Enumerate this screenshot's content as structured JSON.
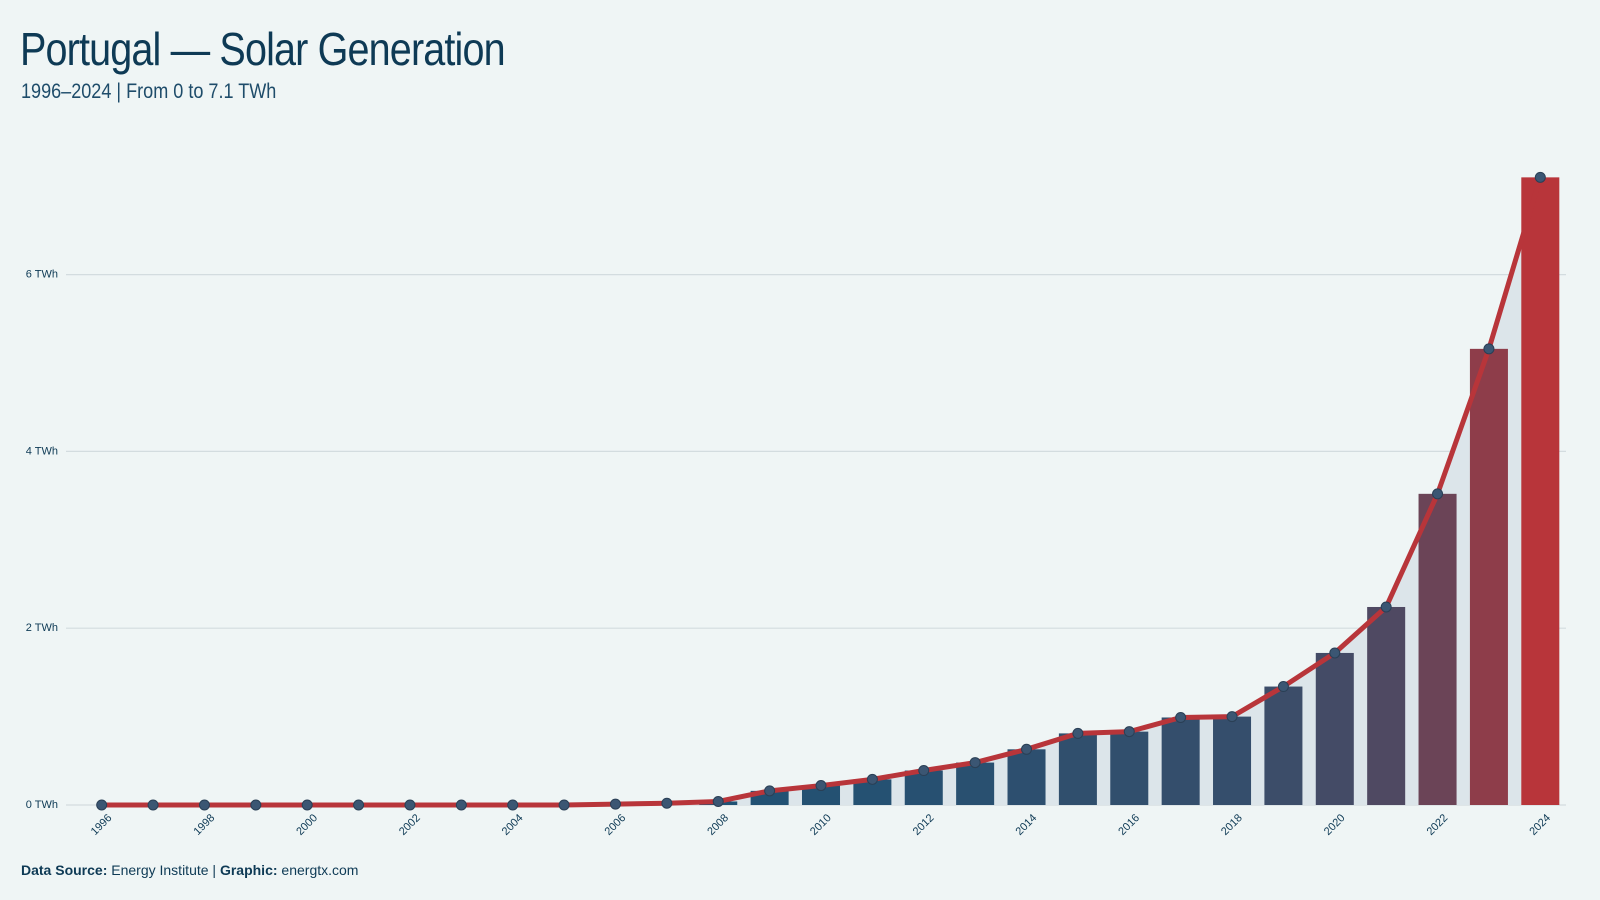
{
  "chart_data": {
    "type": "bar_line",
    "title": "Portugal — Solar Generation",
    "subtitle": "1996–2024 | From 0 to 7.1 TWh",
    "categories": [
      "1996",
      null,
      "1998",
      null,
      "2000",
      null,
      "2002",
      null,
      "2004",
      null,
      "2006",
      null,
      "2008",
      null,
      "2010",
      null,
      "2012",
      null,
      "2014",
      null,
      "2016",
      null,
      "2018",
      null,
      "2020",
      null,
      "2022",
      null,
      "2024"
    ],
    "values": [
      0,
      0,
      0,
      0,
      0,
      0,
      0,
      0,
      0,
      0,
      0.01,
      0.02,
      0.04,
      0.16,
      0.22,
      0.29,
      0.39,
      0.48,
      0.63,
      0.81,
      0.83,
      0.99,
      1.0,
      1.34,
      1.72,
      2.24,
      3.52,
      5.16,
      7.1
    ],
    "color_low": "#1f5274",
    "color_high": "#b8353a",
    "line_color": "#b8353a",
    "marker_color": "#3b5673",
    "area_color": "#dce5ea",
    "ylim": [
      0,
      7.5
    ],
    "yticks": [
      {
        "value": 0,
        "label": "0 TWh"
      },
      {
        "value": 2,
        "label": "2 TWh"
      },
      {
        "value": 4,
        "label": "4 TWh"
      },
      {
        "value": 6,
        "label": "6 TWh"
      }
    ],
    "grid": true
  },
  "footer": {
    "source_label": "Data Source:",
    "source": "Energy Institute",
    "separator": "|",
    "graphic_label": "Graphic:",
    "graphic": "energtx.com"
  }
}
